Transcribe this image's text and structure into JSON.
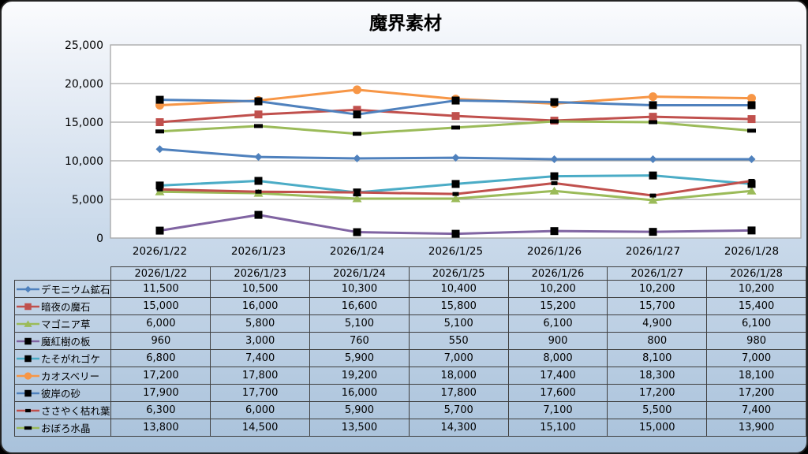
{
  "title": "魔界素材",
  "styles": {
    "card_border": "#242424",
    "table_border": "#3f3f3f",
    "plot_bg": "#FFFFFF",
    "gridline": "#A6A6A6",
    "text": "#000000"
  },
  "chart_data": {
    "type": "line",
    "title": "魔界素材",
    "categories": [
      "2026/1/22",
      "2026/1/23",
      "2026/1/24",
      "2026/1/25",
      "2026/1/26",
      "2026/1/27",
      "2026/1/28"
    ],
    "ylim": [
      0,
      25000
    ],
    "ytick_step": 5000,
    "ytick_labels": [
      "0",
      "5,000",
      "10,000",
      "15,000",
      "20,000",
      "25,000"
    ],
    "grid": true,
    "legend_position": "data-table-left",
    "series": [
      {
        "name": "デモニウム鉱石",
        "color": "#4F81BD",
        "marker": "diamond",
        "marker_color": "#4F81BD",
        "values": [
          11500,
          10500,
          10300,
          10400,
          10200,
          10200,
          10200
        ]
      },
      {
        "name": "暗夜の魔石",
        "color": "#C0504D",
        "marker": "square",
        "marker_color": "#C0504D",
        "values": [
          15000,
          16000,
          16600,
          15800,
          15200,
          15700,
          15400
        ]
      },
      {
        "name": "マゴニア草",
        "color": "#9BBB59",
        "marker": "triangle",
        "marker_color": "#9BBB59",
        "values": [
          6000,
          5800,
          5100,
          5100,
          6100,
          4900,
          6100
        ]
      },
      {
        "name": "魔紅樹の板",
        "color": "#8064A2",
        "marker": "square",
        "marker_color": "#000000",
        "values": [
          960,
          3000,
          760,
          550,
          900,
          800,
          980
        ]
      },
      {
        "name": "たそがれゴケ",
        "color": "#4BACC6",
        "marker": "square",
        "marker_color": "#000000",
        "values": [
          6800,
          7400,
          5900,
          7000,
          8000,
          8100,
          7000
        ]
      },
      {
        "name": "カオスベリー",
        "color": "#F79646",
        "marker": "circle",
        "marker_color": "#F79646",
        "values": [
          17200,
          17800,
          19200,
          18000,
          17400,
          18300,
          18100
        ]
      },
      {
        "name": "彼岸の砂",
        "color": "#4F81BD",
        "marker": "square",
        "marker_color": "#000000",
        "values": [
          17900,
          17700,
          16000,
          17800,
          17600,
          17200,
          17200
        ]
      },
      {
        "name": "ささやく枯れ葉",
        "color": "#C0504D",
        "marker": "dash-sm",
        "marker_color": "#000000",
        "values": [
          6300,
          6000,
          5900,
          5700,
          7100,
          5500,
          7400
        ]
      },
      {
        "name": "おぼろ水晶",
        "color": "#9BBB59",
        "marker": "dash",
        "marker_color": "#000000",
        "values": [
          13800,
          14500,
          13500,
          14300,
          15100,
          15000,
          13900
        ]
      }
    ]
  }
}
